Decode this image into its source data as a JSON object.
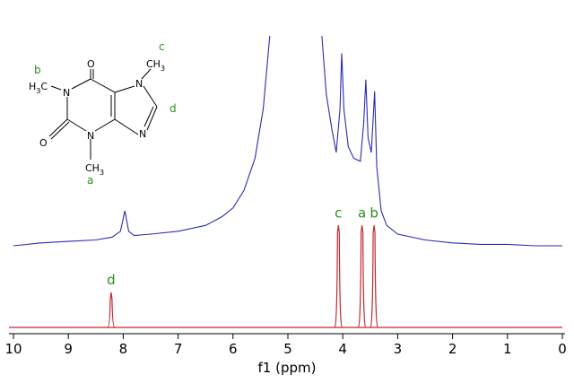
{
  "chart_data": {
    "type": "line",
    "xlabel": "f1 (ppm)",
    "xlim": [
      10,
      0
    ],
    "xticks": [
      10,
      9,
      8,
      7,
      6,
      5,
      4,
      3,
      2,
      1,
      0
    ],
    "ylim": [
      0,
      100
    ],
    "series": [
      {
        "color": "#2b2bb0",
        "x": [
          10,
          9.5,
          9,
          8.5,
          8.2,
          8.05,
          7.97,
          7.9,
          7.8,
          7.5,
          7,
          6.5,
          6.2,
          6,
          5.8,
          5.6,
          5.45,
          5.33,
          4.9,
          4.38,
          4.3,
          4.2,
          4.12,
          4.05,
          4.02,
          3.98,
          3.9,
          3.8,
          3.68,
          3.62,
          3.58,
          3.54,
          3.48,
          3.42,
          3.38,
          3.3,
          3.2,
          3,
          2.5,
          2,
          1.5,
          1,
          0.5,
          0
        ],
        "values": [
          28,
          29,
          29.5,
          30,
          31,
          33,
          40,
          33,
          31.5,
          32,
          33,
          35,
          38,
          41,
          47,
          58,
          75,
          100,
          null,
          100,
          80,
          68,
          60,
          75,
          94,
          75,
          62,
          58,
          57,
          70,
          85,
          65,
          60,
          81,
          55,
          40,
          35,
          32,
          30,
          29,
          28.5,
          28.5,
          28,
          28
        ]
      },
      {
        "color": "#c0282d",
        "x": [
          8.22,
          4.08,
          3.65,
          3.43
        ],
        "values": [
          12,
          35,
          35,
          35
        ],
        "labels": [
          "d",
          "c",
          "a",
          "b"
        ]
      }
    ]
  },
  "structure": {
    "atoms": [
      {
        "text": "O"
      },
      {
        "text": "N"
      },
      {
        "text": "O"
      },
      {
        "text": "N"
      },
      {
        "text": "N"
      },
      {
        "text": "N"
      },
      {
        "text": "CH",
        "sub": "3"
      },
      {
        "text": "H",
        "sub": "3",
        "rest": "C"
      },
      {
        "text": "CH",
        "sub": "3"
      }
    ],
    "tags": [
      "c",
      "b",
      "d",
      "a"
    ]
  }
}
